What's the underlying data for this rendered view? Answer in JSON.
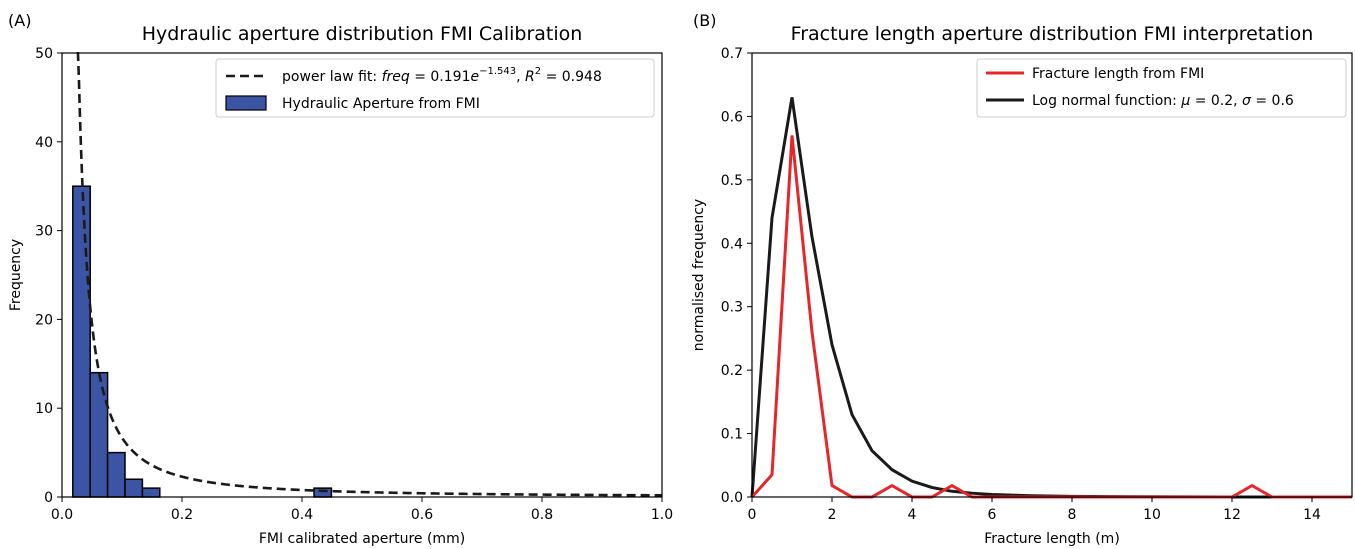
{
  "colors": {
    "bar_fill": "#3b54a4",
    "bar_edge": "#000000",
    "fit_line": "#1a1a1a",
    "red_line": "#e8262a",
    "black_line": "#1a1a1a"
  },
  "chart_data": [
    {
      "panel_label": "(A)",
      "type": "bar",
      "title": "Hydraulic aperture distribution FMI Calibration",
      "xlabel": "FMI calibrated aperture (mm)",
      "ylabel": "Frequency",
      "xlim": [
        0,
        1.0
      ],
      "ylim": [
        0,
        50
      ],
      "xticks": [
        "0.0",
        "0.2",
        "0.4",
        "0.6",
        "0.8",
        "1.0"
      ],
      "yticks": [
        "0",
        "10",
        "20",
        "30",
        "40",
        "50"
      ],
      "legend_position": "top-right",
      "bars": [
        {
          "x0": 0.018,
          "x1": 0.047,
          "value": 35
        },
        {
          "x0": 0.047,
          "x1": 0.076,
          "value": 14
        },
        {
          "x0": 0.076,
          "x1": 0.105,
          "value": 5
        },
        {
          "x0": 0.105,
          "x1": 0.134,
          "value": 2
        },
        {
          "x0": 0.134,
          "x1": 0.163,
          "value": 1
        },
        {
          "x0": 0.42,
          "x1": 0.449,
          "value": 1
        }
      ],
      "bar_legend": "Hydraulic Aperture from FMI",
      "fit": {
        "legend_plain": "power law fit: ",
        "legend_math": "freq = 0.191e^{−1.543}, R² = 0.948",
        "legend_math_parts": {
          "f1": "freq",
          "f2": " = 0.191",
          "f3": "e",
          "f4": "−1.543",
          "f5": ", ",
          "f6": "R",
          "f7": "2",
          "f8": " = 0.948"
        },
        "coefficient": 0.191,
        "exponent": -1.543
      }
    },
    {
      "panel_label": "(B)",
      "type": "line",
      "title": "Fracture length aperture distribution FMI interpretation",
      "xlabel": "Fracture length (m)",
      "ylabel": "normalised frequency",
      "xlim": [
        0,
        15
      ],
      "ylim": [
        0,
        0.7
      ],
      "xticks": [
        "0",
        "2",
        "4",
        "6",
        "8",
        "10",
        "12",
        "14"
      ],
      "yticks": [
        "0.0",
        "0.1",
        "0.2",
        "0.3",
        "0.4",
        "0.5",
        "0.6",
        "0.7"
      ],
      "legend_position": "top-right",
      "series": [
        {
          "name": "Fracture length from FMI",
          "color": "#e8262a",
          "x": [
            0,
            0.5,
            1.0,
            1.5,
            2.0,
            2.5,
            3.0,
            3.5,
            4.0,
            4.5,
            5.0,
            5.5,
            6,
            7,
            8,
            9,
            10,
            11,
            12,
            12.5,
            13,
            14,
            15
          ],
          "y": [
            0,
            0.035,
            0.57,
            0.26,
            0.018,
            0,
            0,
            0.018,
            0,
            0,
            0.018,
            0,
            0,
            0,
            0,
            0,
            0,
            0,
            0,
            0.018,
            0,
            0,
            0
          ]
        },
        {
          "name_plain": "Log normal function: ",
          "name_math_parts": {
            "m1": "μ",
            "m2": " = 0.2, ",
            "m3": "σ",
            "m4": " = 0.6"
          },
          "color": "#1a1a1a",
          "x": [
            0,
            0.5,
            1.0,
            1.5,
            2.0,
            2.5,
            3.0,
            3.5,
            4.0,
            4.5,
            5.0,
            5.5,
            6.0,
            6.5,
            7,
            8,
            9,
            10,
            11,
            12,
            13,
            14,
            15
          ],
          "y": [
            0,
            0.44,
            0.63,
            0.41,
            0.24,
            0.13,
            0.073,
            0.043,
            0.025,
            0.015,
            0.009,
            0.006,
            0.004,
            0.003,
            0.002,
            0.001,
            0.0005,
            0.0003,
            0.0002,
            0.0001,
            0.0001,
            0,
            0
          ]
        }
      ]
    }
  ]
}
